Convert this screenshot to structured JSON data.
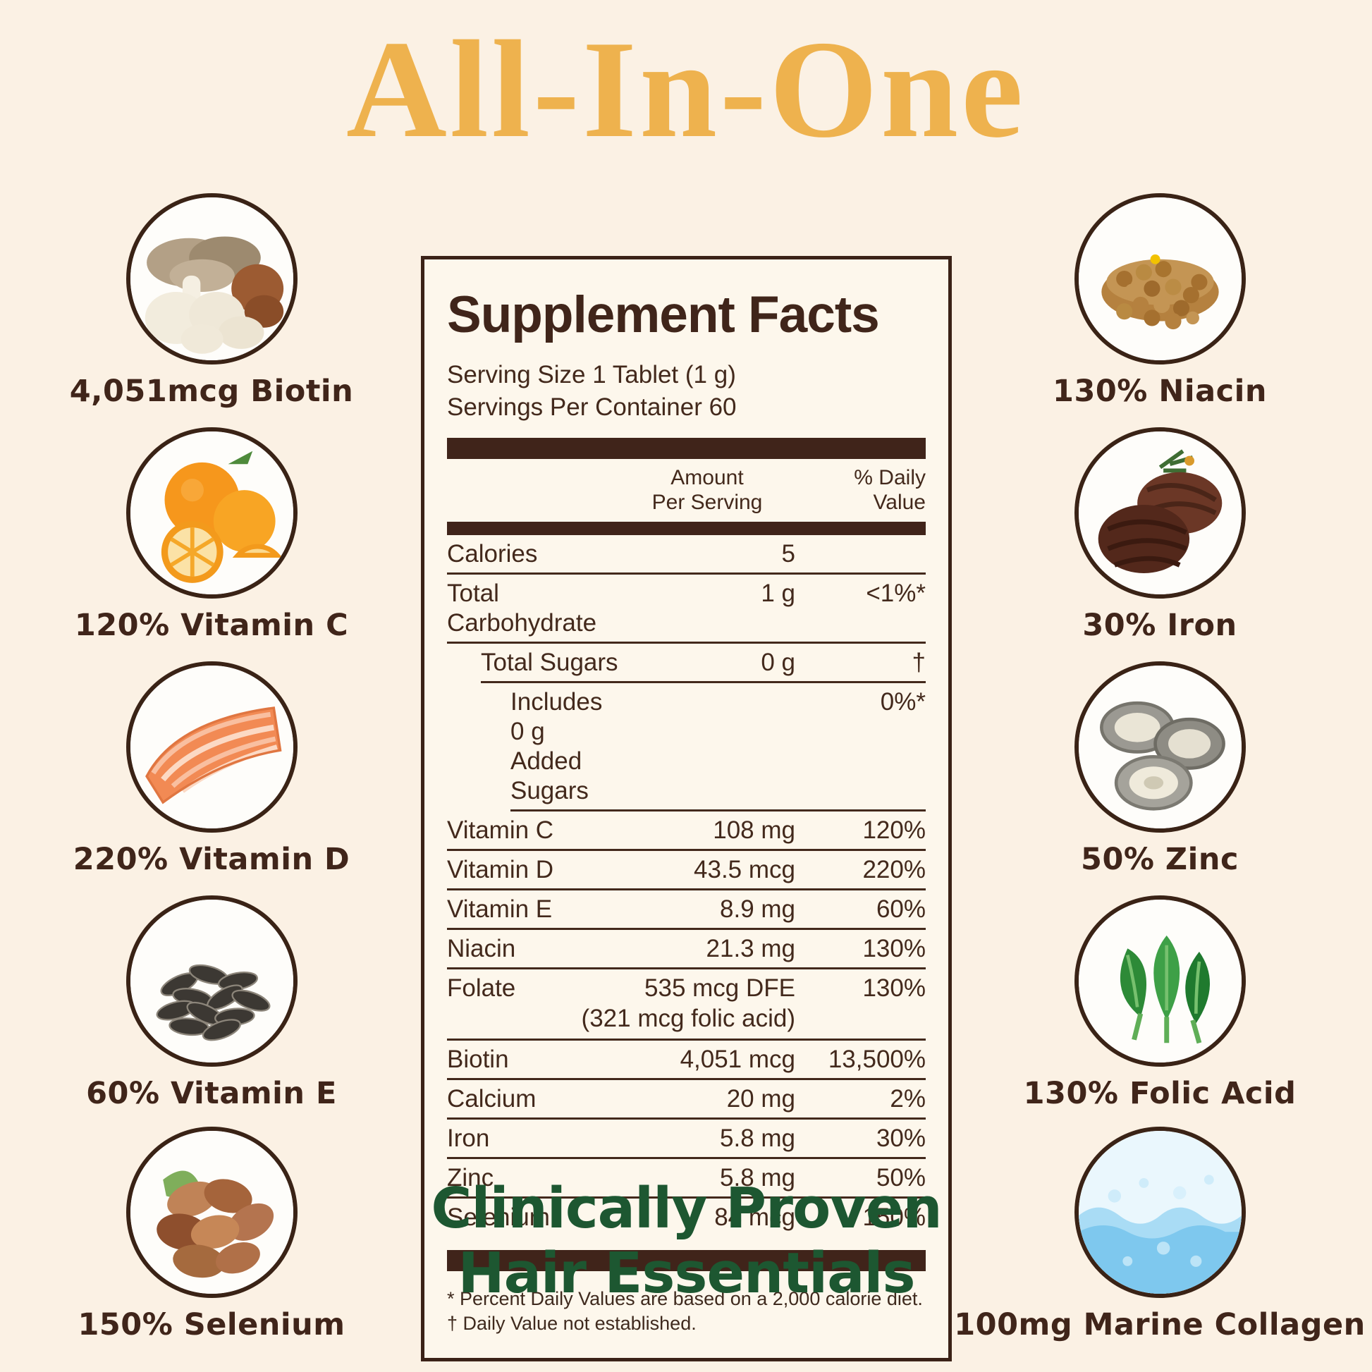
{
  "page": {
    "title": "All-In-One",
    "tagline_line1": "Clinically Proven",
    "tagline_line2": "Hair Essentials"
  },
  "colors": {
    "background": "#FBF1E4",
    "title_gold": "#EEB24E",
    "text_brown": "#40251A",
    "panel_background": "#FDF7EC",
    "panel_border": "#3B2217",
    "tagline_green": "#1D5731"
  },
  "left_items": [
    {
      "label": "4,051mcg Biotin",
      "icon": "mushrooms-icon"
    },
    {
      "label": "120% Vitamin C",
      "icon": "oranges-icon"
    },
    {
      "label": "220% Vitamin D",
      "icon": "salmon-icon"
    },
    {
      "label": "60% Vitamin E",
      "icon": "sunflower-seeds-icon"
    },
    {
      "label": "150% Selenium",
      "icon": "brazil-nuts-icon"
    }
  ],
  "right_items": [
    {
      "label": "130% Niacin",
      "icon": "lentils-icon"
    },
    {
      "label": "30% Iron",
      "icon": "steak-icon"
    },
    {
      "label": "50% Zinc",
      "icon": "oysters-icon"
    },
    {
      "label": "130% Folic Acid",
      "icon": "spinach-icon"
    },
    {
      "label": "100mg Marine Collagen",
      "icon": "water-splash-icon"
    }
  ],
  "supplement_facts": {
    "title": "Supplement Facts",
    "serving_size": "Serving Size 1 Tablet (1 g)",
    "servings_per_container": "Servings Per Container 60",
    "columns": {
      "amount_line1": "Amount",
      "amount_line2": "Per Serving",
      "dv_line1": "% Daily",
      "dv_line2": "Value"
    },
    "rows": [
      {
        "name": "Calories",
        "amount": "5",
        "dv": "",
        "indent": 0
      },
      {
        "name": "Total Carbohydrate",
        "amount": "1 g",
        "dv": "<1%*",
        "indent": 0
      },
      {
        "name": "Total Sugars",
        "amount": "0 g",
        "dv": "†",
        "indent": 1
      },
      {
        "name": "Includes 0 g Added Sugars",
        "amount": "",
        "dv": "0%*",
        "indent": 2
      },
      {
        "name": "Vitamin C",
        "amount": "108 mg",
        "dv": "120%",
        "indent": 0
      },
      {
        "name": "Vitamin D",
        "amount": "43.5 mcg",
        "dv": "220%",
        "indent": 0
      },
      {
        "name": "Vitamin E",
        "amount": "8.9 mg",
        "dv": "60%",
        "indent": 0
      },
      {
        "name": "Niacin",
        "amount": "21.3 mg",
        "dv": "130%",
        "indent": 0
      },
      {
        "name": "Folate",
        "amount": "535 mcg DFE",
        "dv": "130%",
        "indent": 0,
        "subline": "(321 mcg folic acid)"
      },
      {
        "name": "Biotin",
        "amount": "4,051 mcg",
        "dv": "13,500%",
        "indent": 0
      },
      {
        "name": "Calcium",
        "amount": "20 mg",
        "dv": "2%",
        "indent": 0
      },
      {
        "name": "Iron",
        "amount": "5.8 mg",
        "dv": "30%",
        "indent": 0
      },
      {
        "name": "Zinc",
        "amount": "5.8 mg",
        "dv": "50%",
        "indent": 0
      },
      {
        "name": "Selenium",
        "amount": "84 mcg",
        "dv": "150%",
        "indent": 0
      }
    ],
    "footnotes": [
      "* Percent Daily Values are based on a 2,000 calorie diet.",
      "† Daily Value not established."
    ]
  }
}
